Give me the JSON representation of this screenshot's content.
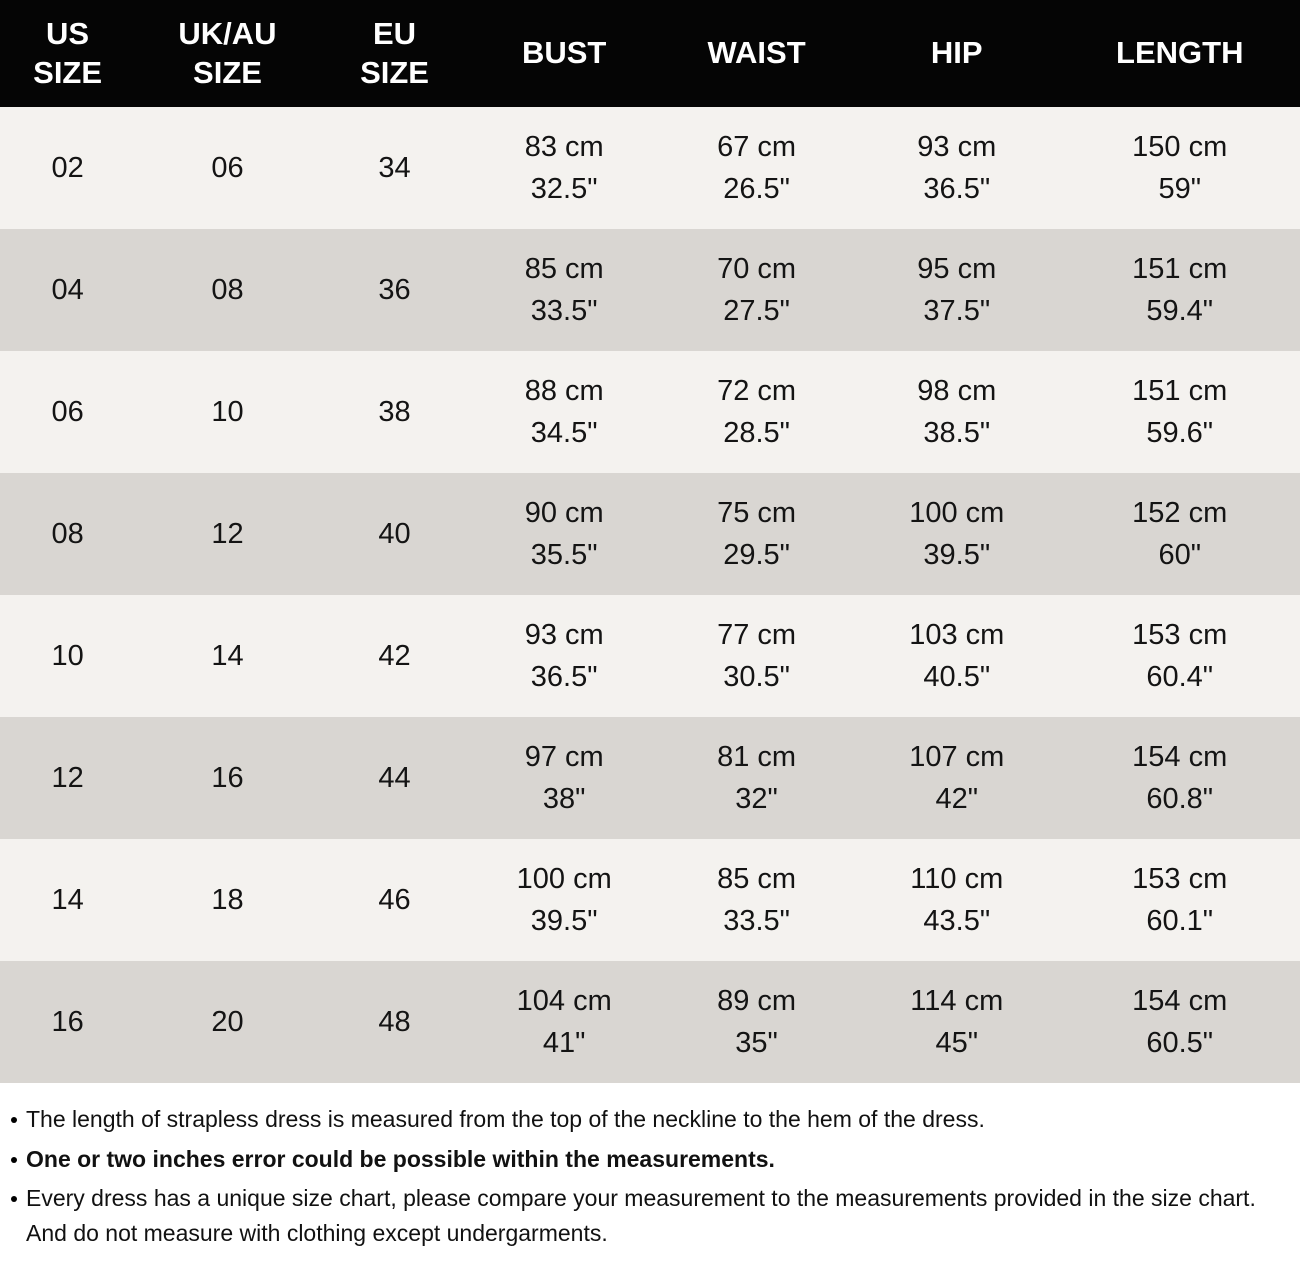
{
  "chart_data": {
    "type": "table",
    "columns": [
      "US\nSIZE",
      "UK/AU\nSIZE",
      "EU\nSIZE",
      "BUST",
      "WAIST",
      "HIP",
      "LENGTH"
    ],
    "rows": [
      [
        [
          "02"
        ],
        [
          "06"
        ],
        [
          "34"
        ],
        [
          "83 cm",
          "32.5\""
        ],
        [
          "67 cm",
          "26.5\""
        ],
        [
          "93 cm",
          "36.5\""
        ],
        [
          "150 cm",
          "59\""
        ]
      ],
      [
        [
          "04"
        ],
        [
          "08"
        ],
        [
          "36"
        ],
        [
          "85 cm",
          "33.5\""
        ],
        [
          "70 cm",
          "27.5\""
        ],
        [
          "95 cm",
          "37.5\""
        ],
        [
          "151 cm",
          "59.4\""
        ]
      ],
      [
        [
          "06"
        ],
        [
          "10"
        ],
        [
          "38"
        ],
        [
          "88 cm",
          "34.5\""
        ],
        [
          "72 cm",
          "28.5\""
        ],
        [
          "98 cm",
          "38.5\""
        ],
        [
          "151 cm",
          "59.6\""
        ]
      ],
      [
        [
          "08"
        ],
        [
          "12"
        ],
        [
          "40"
        ],
        [
          "90 cm",
          "35.5\""
        ],
        [
          "75 cm",
          "29.5\""
        ],
        [
          "100 cm",
          "39.5\""
        ],
        [
          "152 cm",
          "60\""
        ]
      ],
      [
        [
          "10"
        ],
        [
          "14"
        ],
        [
          "42"
        ],
        [
          "93 cm",
          "36.5\""
        ],
        [
          "77 cm",
          "30.5\""
        ],
        [
          "103 cm",
          "40.5\""
        ],
        [
          "153 cm",
          "60.4\""
        ]
      ],
      [
        [
          "12"
        ],
        [
          "16"
        ],
        [
          "44"
        ],
        [
          "97 cm",
          "38\""
        ],
        [
          "81 cm",
          "32\""
        ],
        [
          "107 cm",
          "42\""
        ],
        [
          "154 cm",
          "60.8\""
        ]
      ],
      [
        [
          "14"
        ],
        [
          "18"
        ],
        [
          "46"
        ],
        [
          "100 cm",
          "39.5\""
        ],
        [
          "85 cm",
          "33.5\""
        ],
        [
          "110 cm",
          "43.5\""
        ],
        [
          "153 cm",
          "60.1\""
        ]
      ],
      [
        [
          "16"
        ],
        [
          "20"
        ],
        [
          "48"
        ],
        [
          "104 cm",
          "41\""
        ],
        [
          "89 cm",
          "35\""
        ],
        [
          "114 cm",
          "45\""
        ],
        [
          "154 cm",
          "60.5\""
        ]
      ]
    ]
  },
  "notes": [
    {
      "text": "The length of strapless dress is measured from the top of the neckline to the hem of the dress.",
      "bold": false
    },
    {
      "text": "One or two inches error could be possible within the measurements.",
      "bold": true
    },
    {
      "text": "Every dress has a unique size chart, please compare your measurement to the measurements provided in the size chart. And do not measure with clothing except undergarments.",
      "bold": false
    }
  ],
  "colors": {
    "header_bg": "#050505",
    "header_text": "#ffffff",
    "row_light": "#f4f2ef",
    "row_dark": "#d9d6d2",
    "page_bg": "#ffffff",
    "text": "#141414"
  }
}
